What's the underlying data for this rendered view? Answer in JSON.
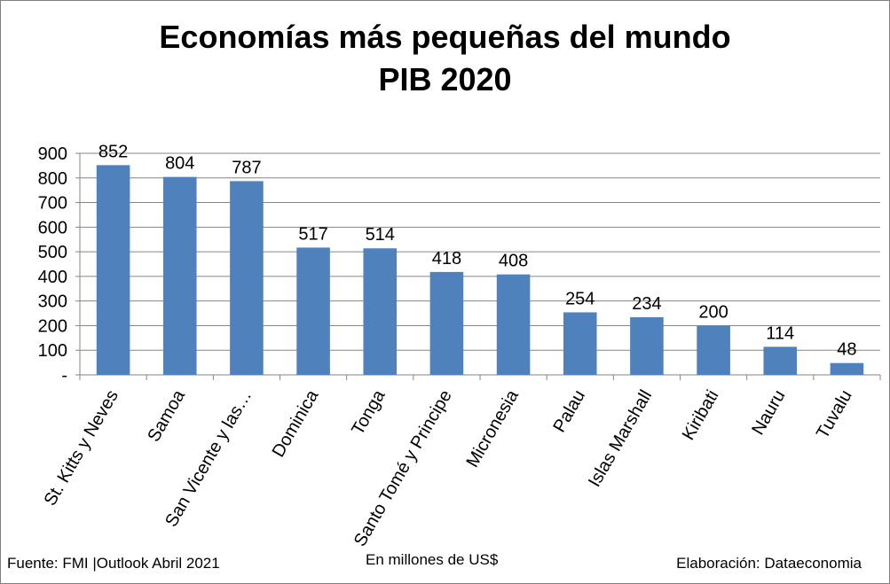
{
  "chart_data": {
    "type": "bar",
    "title": [
      "Economías más pequeñas del mundo",
      "PIB 2020"
    ],
    "categories": [
      "St. Kitts y Neves",
      "Samoa",
      "San Vicente y las…",
      "Dominica",
      "Tonga",
      "Santo Tomé y Principe",
      "Micronesia",
      "Palau",
      "Islas Marshall",
      "Kiribati",
      "Nauru",
      "Tuvalu"
    ],
    "values": [
      852,
      804,
      787,
      517,
      514,
      418,
      408,
      254,
      234,
      200,
      114,
      48
    ],
    "data_labels": [
      "852",
      "804",
      "787",
      "517",
      "514",
      "418",
      "408",
      "254",
      "234",
      "200",
      "114",
      "48"
    ],
    "ylim": [
      0,
      900
    ],
    "y_ticks": [
      0,
      100,
      200,
      300,
      400,
      500,
      600,
      700,
      800,
      900
    ],
    "y_tick_labels": [
      "-",
      "100",
      "200",
      "300",
      "400",
      "500",
      "600",
      "700",
      "800",
      "900"
    ],
    "grid": true,
    "bar_color": "#4F81BD",
    "xlabel": "En millones de US$",
    "source": "Fuente: FMI |Outlook Abril 2021",
    "credit": "Elaboración: Dataeconomia"
  }
}
